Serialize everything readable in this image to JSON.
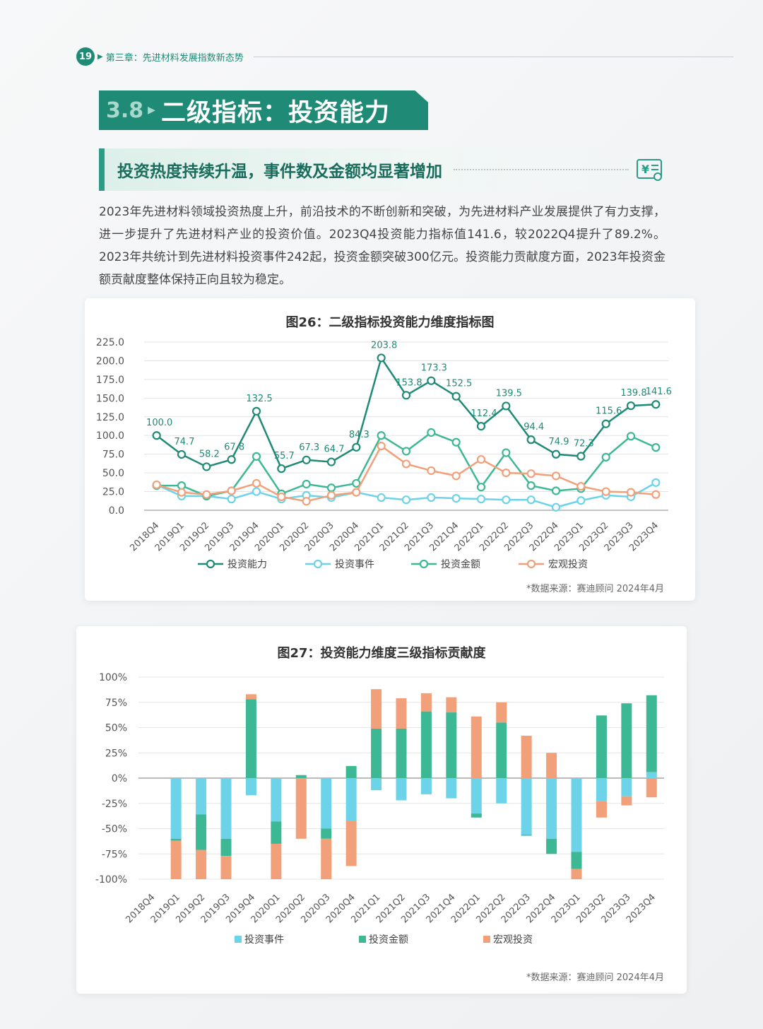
{
  "header": {
    "page_number": "19",
    "chapter": "第三章：先进材料发展指数新态势"
  },
  "section": {
    "number": "3.8",
    "title": "二级指标：投资能力"
  },
  "subtitle": "投资热度持续升温，事件数及金额均显著增加",
  "intro_text": "2023年先进材料领域投资热度上升，前沿技术的不断创新和突破，为先进材料产业发展提供了有力支撑，进一步提升了先进材料产业的投资价值。2023Q4投资能力指标值141.6，较2022Q4提升了89.2%。2023年共统计到先进材料投资事件242起，投资金额突破300亿元。投资能力贡献度方面，2023年投资金额贡献度整体保持正向且较为稳定。",
  "colors": {
    "dark_teal": "#1f8a75",
    "light_blue": "#6dd3e8",
    "green": "#3cb894",
    "orange": "#f2a07a"
  },
  "chart_data": [
    {
      "type": "line",
      "title": "图26：二级指标投资能力维度指标图",
      "categories": [
        "2018Q4",
        "2019Q1",
        "2019Q2",
        "2019Q3",
        "2019Q4",
        "2020Q1",
        "2020Q2",
        "2020Q3",
        "2020Q4",
        "2021Q1",
        "2021Q2",
        "2021Q3",
        "2021Q4",
        "2022Q1",
        "2022Q2",
        "2022Q3",
        "2022Q4",
        "2023Q1",
        "2023Q2",
        "2023Q3",
        "2023Q4"
      ],
      "y_ticks": [
        "225.0",
        "200.0",
        "175.0",
        "150.0",
        "125.0",
        "100.0",
        "75.0",
        "50.0",
        "25.0",
        "0.0"
      ],
      "ylim": [
        0,
        225
      ],
      "grid": true,
      "legend_position": "bottom",
      "series": [
        {
          "name": "投资能力",
          "color": "#1f8a75",
          "labeled": true,
          "values": [
            100.0,
            74.7,
            58.2,
            67.8,
            132.5,
            55.7,
            67.3,
            64.7,
            84.3,
            203.8,
            153.8,
            173.3,
            152.5,
            112.4,
            139.5,
            94.4,
            74.9,
            72.3,
            115.6,
            139.8,
            141.6
          ],
          "labels": [
            "100.0",
            "74.7",
            "58.2",
            "67.8",
            "132.5",
            "55.7",
            "67.3",
            "64.7",
            "84.3",
            "203.8",
            "153.8",
            "173.3",
            "152.5",
            "112.4",
            "139.5",
            "94.4",
            "74.9",
            "72.3",
            "115.6",
            "139.8",
            "141.6"
          ]
        },
        {
          "name": "投资事件",
          "color": "#6dd3e8",
          "values": [
            34,
            19,
            19,
            15,
            25,
            15,
            20,
            17,
            24,
            17,
            14,
            17,
            16,
            15,
            14,
            14,
            4,
            13,
            20,
            18,
            37
          ]
        },
        {
          "name": "投资金额",
          "color": "#3cb894",
          "values": [
            33,
            33,
            19,
            26,
            72,
            22,
            35,
            30,
            36,
            100,
            79,
            104,
            91,
            31,
            77,
            33,
            26,
            29,
            71,
            99,
            84
          ]
        },
        {
          "name": "宏观投资",
          "color": "#f2a07a",
          "values": [
            34,
            24,
            21,
            26,
            36,
            18,
            12,
            20,
            24,
            86,
            62,
            53,
            46,
            68,
            50,
            49,
            46,
            32,
            25,
            24,
            21
          ]
        }
      ],
      "source": "*数据来源：赛迪顾问 2024年4月"
    },
    {
      "type": "bar",
      "stacked": true,
      "title": "图27：投资能力维度三级指标贡献度",
      "categories": [
        "2018Q4",
        "2019Q1",
        "2019Q2",
        "2019Q3",
        "2019Q4",
        "2020Q1",
        "2020Q2",
        "2020Q3",
        "2020Q4",
        "2021Q1",
        "2021Q2",
        "2021Q3",
        "2021Q4",
        "2022Q1",
        "2022Q2",
        "2022Q3",
        "2022Q4",
        "2023Q1",
        "2023Q2",
        "2023Q3",
        "2023Q4"
      ],
      "y_ticks": [
        "100%",
        "75%",
        "50%",
        "25%",
        "0%",
        "-25%",
        "-50%",
        "-75%",
        "-100%"
      ],
      "ylim": [
        -100,
        100
      ],
      "unit": "%",
      "grid": true,
      "legend_position": "bottom",
      "series": [
        {
          "name": "投资事件",
          "color": "#6dd3e8",
          "values": [
            0,
            -60,
            -36,
            -60,
            -17,
            -43,
            0,
            -50,
            -42,
            -12,
            -22,
            -16,
            -20,
            -35,
            -25,
            -56,
            -60,
            -73,
            -23,
            -18,
            6
          ]
        },
        {
          "name": "投资金额",
          "color": "#3cb894",
          "values": [
            0,
            -2,
            -35,
            -17,
            78,
            -22,
            3,
            -10,
            12,
            49,
            49,
            66,
            65,
            -4,
            55,
            -1,
            -15,
            -17,
            62,
            74,
            76
          ]
        },
        {
          "name": "宏观投资",
          "color": "#f2a07a",
          "values": [
            0,
            -38,
            -29,
            -23,
            5,
            -35,
            -60,
            -40,
            -45,
            39,
            30,
            18,
            15,
            61,
            20,
            42,
            25,
            -10,
            -16,
            -9,
            -19
          ]
        }
      ],
      "source": "*数据来源：赛迪顾问 2024年4月"
    }
  ]
}
